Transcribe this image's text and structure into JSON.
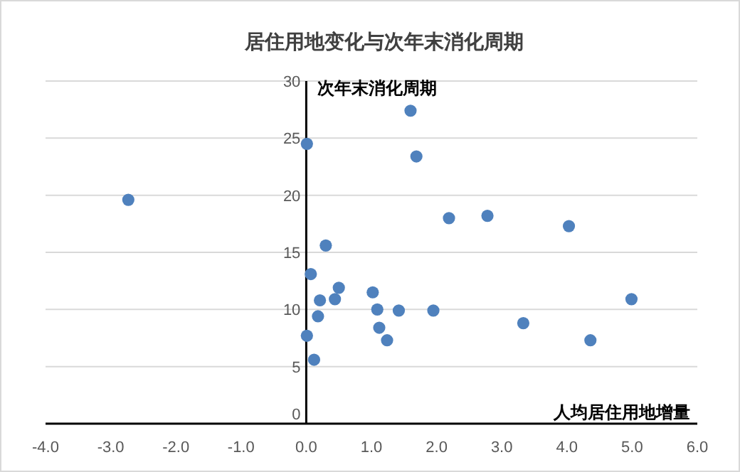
{
  "chart_data": {
    "type": "scatter",
    "title": "居住用地变化与次年末消化周期",
    "xlabel": "人均居住用地增量",
    "ylabel": "次年末消化周期",
    "x": [
      -2.73,
      0.01,
      1.6,
      1.69,
      2.19,
      2.78,
      4.03,
      0.3,
      0.07,
      0.5,
      0.44,
      0.21,
      0.18,
      0.01,
      0.12,
      1.02,
      1.09,
      1.12,
      1.24,
      1.42,
      1.95,
      3.33,
      4.36,
      4.99
    ],
    "series": [
      {
        "color": "#4f81bd",
        "values": [
          19.6,
          24.5,
          27.4,
          23.4,
          18.0,
          18.2,
          17.3,
          15.6,
          13.1,
          11.9,
          10.9,
          10.8,
          9.4,
          7.7,
          5.6,
          11.5,
          10.0,
          8.4,
          7.3,
          9.9,
          9.9,
          8.8,
          7.3,
          10.9
        ]
      }
    ],
    "xlim": [
      -4,
      6
    ],
    "xticks": [
      {
        "value": -4,
        "label": "-4.0"
      },
      {
        "value": -3,
        "label": "-3.0"
      },
      {
        "value": -2,
        "label": "-2.0"
      },
      {
        "value": -1,
        "label": "-1.0"
      },
      {
        "value": 0,
        "label": "0.0"
      },
      {
        "value": 1,
        "label": "1.0"
      },
      {
        "value": 2,
        "label": "2.0"
      },
      {
        "value": 3,
        "label": "3.0"
      },
      {
        "value": 4,
        "label": "4.0"
      },
      {
        "value": 5,
        "label": "5.0"
      },
      {
        "value": 6,
        "label": "6.0"
      }
    ],
    "ylim": [
      0,
      30
    ],
    "yticks": [
      0,
      5,
      10,
      15,
      20,
      25,
      30
    ],
    "grid": "y",
    "marker": "circle"
  }
}
